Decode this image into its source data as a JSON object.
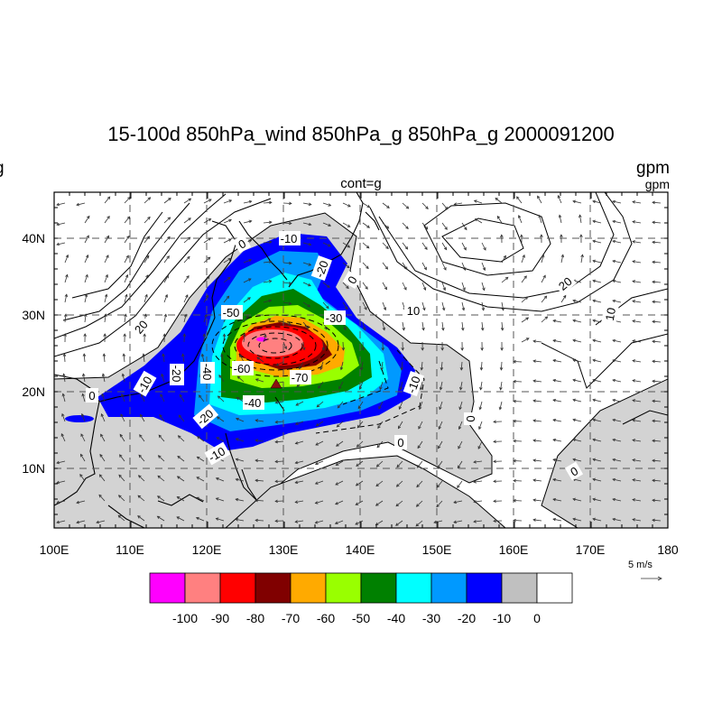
{
  "header": {
    "title": "15-100d 850hPa_wind 850hPa_g 850hPa_g 2000091200",
    "left_fragment": "g",
    "center_sub": "cont=g",
    "units_main": "gpm",
    "units_sub": "gpm"
  },
  "axes": {
    "lon_labels": [
      "100E",
      "110E",
      "120E",
      "130E",
      "140E",
      "150E",
      "160E",
      "170E",
      "180"
    ],
    "lat_labels": [
      "10N",
      "20N",
      "30N",
      "40N"
    ]
  },
  "contour_labels": [
    "-10",
    "-20",
    "-30",
    "-40",
    "-50",
    "-60",
    "-70",
    "-20",
    "-10",
    "-40",
    "-50",
    "-60",
    "-70",
    "-40",
    "-20",
    "-10",
    "-10",
    "0",
    "0",
    "0",
    "0",
    "0",
    "0",
    "20",
    "20",
    "10",
    "10",
    "-20",
    "-10"
  ],
  "marker": {
    "name": "red-triangle",
    "color": "#8b1010"
  },
  "wind_reference": {
    "label": "5 m/s"
  },
  "colorbar": {
    "labels": [
      "-100",
      "-90",
      "-80",
      "-70",
      "-60",
      "-50",
      "-40",
      "-30",
      "-20",
      "-10",
      "0"
    ],
    "colors": [
      "#ff00ff",
      "#ff8080",
      "#ff0000",
      "#800000",
      "#ffaa00",
      "#99ff00",
      "#008000",
      "#00ffff",
      "#0099ff",
      "#0000ff",
      "#c0c0c0",
      "#ffffff"
    ]
  },
  "colors": {
    "land_or_zero": "#d3d3d3",
    "grid": "#555555"
  }
}
